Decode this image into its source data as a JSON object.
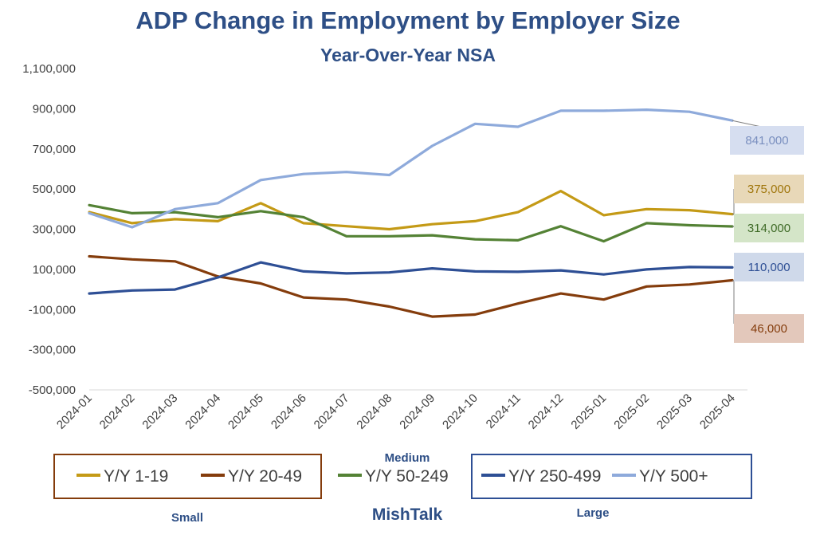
{
  "chart_data": {
    "type": "line",
    "title": "ADP Change in Employment by Employer Size",
    "subtitle": "Year-Over-Year NSA",
    "ylim": [
      -500000,
      1100000
    ],
    "y_ticks": [
      "1,100,000",
      "900,000",
      "700,000",
      "500,000",
      "300,000",
      "100,000",
      "-100,000",
      "-300,000",
      "-500,000"
    ],
    "y_tick_values": [
      1100000,
      900000,
      700000,
      500000,
      300000,
      100000,
      -100000,
      -300000,
      -500000
    ],
    "grid": false,
    "legend_position": "bottom",
    "x": [
      "2024-01",
      "2024-02",
      "2024-03",
      "2024-04",
      "2024-05",
      "2024-06",
      "2024-07",
      "2024-08",
      "2024-09",
      "2024-10",
      "2024-11",
      "2024-12",
      "2025-01",
      "2025-02",
      "2025-03",
      "2025-04"
    ],
    "series": [
      {
        "name": "Y/Y 1-19",
        "color": "#c49a16",
        "label": "375,000",
        "label_bg": "#e8d8b8",
        "label_color": "#a0760c",
        "values": [
          385000,
          330000,
          350000,
          340000,
          430000,
          330000,
          315000,
          300000,
          325000,
          340000,
          385000,
          490000,
          370000,
          400000,
          395000,
          375000
        ]
      },
      {
        "name": "Y/Y 20-49",
        "color": "#843c0c",
        "label": "46,000",
        "label_bg": "#e3c8bb",
        "label_color": "#843c0c",
        "values": [
          165000,
          150000,
          140000,
          65000,
          30000,
          -40000,
          -50000,
          -85000,
          -135000,
          -125000,
          -70000,
          -20000,
          -50000,
          15000,
          25000,
          46000
        ]
      },
      {
        "name": "Y/Y 50-249",
        "color": "#548235",
        "label": "314,000",
        "label_bg": "#d4e5c8",
        "label_color": "#3f6b27",
        "values": [
          420000,
          380000,
          385000,
          360000,
          390000,
          360000,
          265000,
          265000,
          270000,
          250000,
          245000,
          315000,
          240000,
          330000,
          320000,
          314000
        ]
      },
      {
        "name": "Y/Y 250-499",
        "color": "#2e4f95",
        "label": "110,000",
        "label_bg": "#cfd9ea",
        "label_color": "#2e4f95",
        "values": [
          -20000,
          -5000,
          0,
          60000,
          135000,
          90000,
          80000,
          85000,
          105000,
          90000,
          88000,
          95000,
          75000,
          100000,
          112000,
          110000
        ]
      },
      {
        "name": "Y/Y 500+",
        "color": "#8eaadb",
        "label": "841,000",
        "label_bg": "#d6def0",
        "label_color": "#7a8fbf",
        "values": [
          380000,
          310000,
          400000,
          430000,
          545000,
          575000,
          585000,
          570000,
          715000,
          825000,
          810000,
          890000,
          890000,
          895000,
          885000,
          841000
        ]
      }
    ],
    "legend_groups": [
      {
        "label": "Small",
        "color": "#843c0c",
        "series": [
          "Y/Y 1-19",
          "Y/Y 20-49"
        ]
      },
      {
        "label": "Medium",
        "series": [
          "Y/Y 50-249"
        ]
      },
      {
        "label": "Large",
        "color": "#2e4f95",
        "series": [
          "Y/Y 250-499",
          "Y/Y 500+"
        ]
      }
    ],
    "footer": "MishTalk"
  }
}
